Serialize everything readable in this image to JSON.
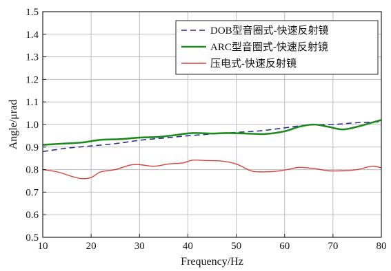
{
  "chart_data": {
    "type": "line",
    "title": "",
    "xlabel": "Frequency/Hz",
    "ylabel": "Angle/μrad",
    "xlim": [
      10,
      80
    ],
    "ylim": [
      0.5,
      1.5
    ],
    "xticks": [
      10,
      20,
      30,
      40,
      50,
      60,
      70,
      80
    ],
    "yticks": [
      0.5,
      0.6,
      0.7,
      0.8,
      0.9,
      1.0,
      1.1,
      1.2,
      1.3,
      1.4,
      1.5
    ],
    "xtick_labels": [
      "10",
      "20",
      "30",
      "40",
      "50",
      "60",
      "70",
      "80"
    ],
    "ytick_labels": [
      "0.5",
      "0.6",
      "0.7",
      "0.8",
      "0.9",
      "1.0",
      "1.1",
      "1.2",
      "1.3",
      "1.4",
      "1.5"
    ],
    "grid": true,
    "legend_position": "top-right",
    "series": [
      {
        "name": "DOB型音圈式-快速反射镜",
        "color": "#2b2f8a",
        "style": "dashed",
        "x": [
          10,
          15,
          20,
          25,
          30,
          35,
          40,
          45,
          50,
          55,
          60,
          65,
          70,
          75,
          80
        ],
        "y": [
          0.88,
          0.895,
          0.905,
          0.915,
          0.93,
          0.94,
          0.95,
          0.958,
          0.965,
          0.972,
          0.985,
          0.998,
          1.0,
          1.008,
          1.012
        ]
      },
      {
        "name": "ARC型音圈式-快速反射镜",
        "color": "#1e8a1e",
        "style": "solid",
        "x": [
          10,
          14,
          18,
          22,
          26,
          30,
          34,
          37,
          41,
          45,
          48,
          52,
          56,
          60,
          63,
          66,
          69,
          72,
          75,
          78,
          80
        ],
        "y": [
          0.91,
          0.915,
          0.92,
          0.932,
          0.935,
          0.942,
          0.945,
          0.952,
          0.962,
          0.96,
          0.962,
          0.96,
          0.958,
          0.97,
          0.99,
          1.0,
          0.99,
          0.978,
          0.99,
          1.008,
          1.02
        ]
      },
      {
        "name": "压电式-快速反射镜",
        "color": "#d9413a",
        "style": "solid",
        "x": [
          10,
          13,
          16,
          18,
          20,
          22,
          25,
          28,
          30,
          33,
          36,
          39,
          41,
          44,
          47,
          50,
          53,
          55,
          58,
          61,
          63,
          66,
          69,
          72,
          75,
          78,
          80
        ],
        "y": [
          0.8,
          0.79,
          0.77,
          0.76,
          0.765,
          0.79,
          0.8,
          0.82,
          0.822,
          0.815,
          0.825,
          0.83,
          0.842,
          0.84,
          0.838,
          0.825,
          0.795,
          0.79,
          0.792,
          0.802,
          0.81,
          0.805,
          0.795,
          0.795,
          0.8,
          0.815,
          0.808
        ]
      }
    ]
  }
}
